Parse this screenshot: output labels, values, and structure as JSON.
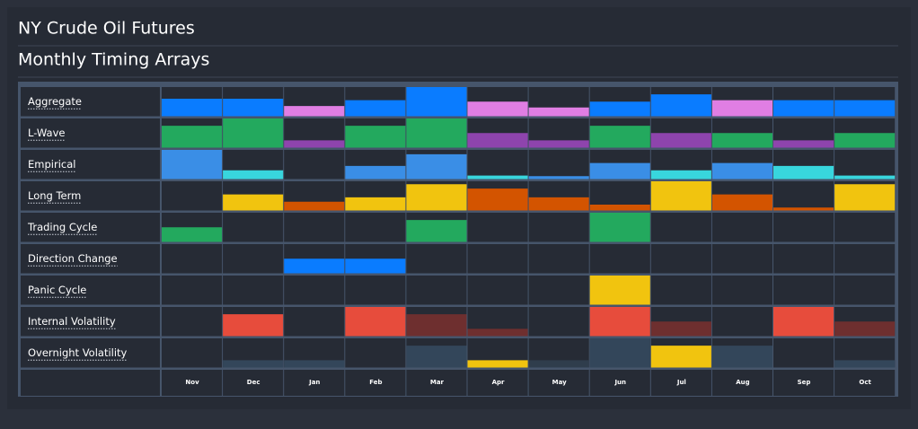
{
  "chart_data": {
    "type": "bar",
    "title": "NY Crude Oil Futures",
    "subtitle": "Monthly Timing Arrays",
    "categories": [
      "Nov",
      "Dec",
      "Jan",
      "Feb",
      "Mar",
      "Apr",
      "May",
      "Jun",
      "Jul",
      "Aug",
      "Sep",
      "Oct"
    ],
    "ylim": [
      0,
      1
    ],
    "series": [
      {
        "name": "Aggregate",
        "values": [
          0.6,
          0.6,
          0.35,
          0.55,
          1.0,
          0.5,
          0.3,
          0.5,
          0.75,
          0.55,
          0.55,
          0.55
        ],
        "colors": [
          "#0a7cff",
          "#0a7cff",
          "#e07ee3",
          "#0a7cff",
          "#0a7cff",
          "#e07ee3",
          "#e07ee3",
          "#0a7cff",
          "#0a7cff",
          "#e07ee3",
          "#0a7cff",
          "#0a7cff"
        ]
      },
      {
        "name": "L-Wave",
        "values": [
          0.75,
          1.0,
          0.25,
          0.75,
          1.0,
          0.5,
          0.25,
          0.75,
          0.5,
          0.5,
          0.25,
          0.5
        ],
        "colors": [
          "#23a95e",
          "#23a95e",
          "#8e44ad",
          "#23a95e",
          "#23a95e",
          "#8e44ad",
          "#8e44ad",
          "#23a95e",
          "#8e44ad",
          "#23a95e",
          "#8e44ad",
          "#23a95e"
        ]
      },
      {
        "name": "Empirical",
        "values": [
          1.0,
          0.3,
          0,
          0.45,
          0.85,
          0.12,
          0.1,
          0.55,
          0.3,
          0.55,
          0.45,
          0.12
        ],
        "colors": [
          "#3a8ee6",
          "#38d6dd",
          null,
          "#3a8ee6",
          "#3a8ee6",
          "#38d6dd",
          "#3a8ee6",
          "#3a8ee6",
          "#38d6dd",
          "#3a8ee6",
          "#38d6dd",
          "#38d6dd"
        ]
      },
      {
        "name": "Long Term",
        "values": [
          0,
          0.55,
          0.3,
          0.45,
          0.9,
          0.75,
          0.45,
          0.2,
          1.0,
          0.55,
          0.1,
          0.9
        ],
        "colors": [
          null,
          "#f1c40f",
          "#d35400",
          "#f1c40f",
          "#f1c40f",
          "#d35400",
          "#d35400",
          "#d35400",
          "#f1c40f",
          "#d35400",
          "#d35400",
          "#f1c40f"
        ]
      },
      {
        "name": "Trading Cycle",
        "values": [
          0.5,
          0,
          0,
          0,
          0.75,
          0,
          0,
          1.0,
          0,
          0,
          0,
          0
        ],
        "colors": [
          "#23a95e",
          null,
          null,
          null,
          "#23a95e",
          null,
          null,
          "#23a95e",
          null,
          null,
          null,
          null
        ]
      },
      {
        "name": "Direction Change",
        "values": [
          0,
          0,
          0.5,
          0.5,
          0,
          0,
          0,
          0,
          0,
          0,
          0,
          0
        ],
        "colors": [
          null,
          null,
          "#0a7cff",
          "#0a7cff",
          null,
          null,
          null,
          null,
          null,
          null,
          null,
          null
        ]
      },
      {
        "name": "Panic Cycle",
        "values": [
          0,
          0,
          0,
          0,
          0,
          0,
          0,
          1.0,
          0,
          0,
          0,
          0
        ],
        "colors": [
          null,
          null,
          null,
          null,
          null,
          null,
          null,
          "#f1c40f",
          null,
          null,
          null,
          null
        ]
      },
      {
        "name": "Internal Volatility",
        "values": [
          0,
          0.75,
          0,
          1.0,
          0.75,
          0.25,
          0,
          1.0,
          0.5,
          0,
          1.0,
          0.5
        ],
        "colors": [
          null,
          "#e74c3c",
          null,
          "#e74c3c",
          "#6e2f2f",
          "#6e2f2f",
          null,
          "#e74c3c",
          "#6e2f2f",
          null,
          "#e74c3c",
          "#6e2f2f"
        ]
      },
      {
        "name": "Overnight Volatility",
        "values": [
          0,
          0.25,
          0.25,
          0,
          0.75,
          0.25,
          0.25,
          1.0,
          0.75,
          0.75,
          0,
          0.25
        ],
        "colors": [
          null,
          "#33465a",
          "#33465a",
          null,
          "#33465a",
          "#f1c40f",
          "#2f3d4c",
          "#33465a",
          "#f1c40f",
          "#33465a",
          null,
          "#33465a"
        ]
      }
    ]
  }
}
